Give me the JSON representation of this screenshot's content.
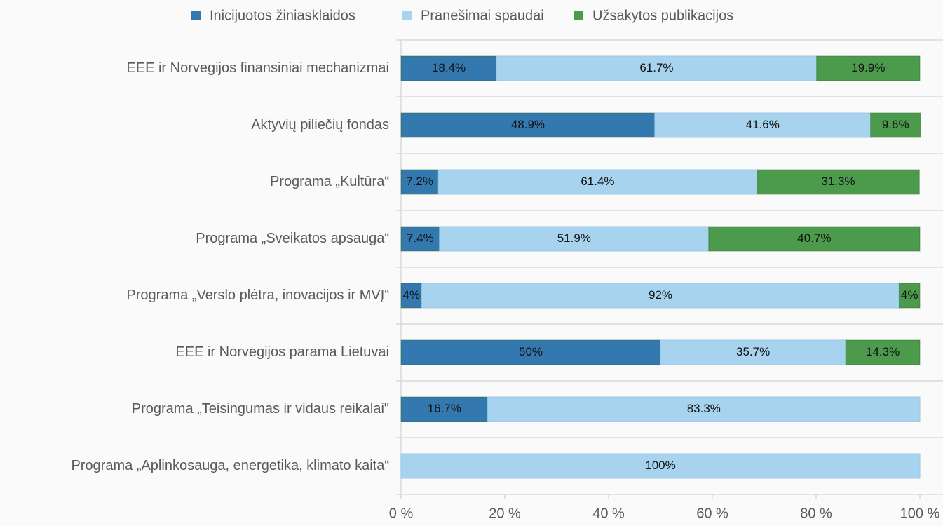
{
  "chart_data": {
    "type": "stacked-barh",
    "categories": [
      "EEE ir Norvegijos finansiniai mechanizmai",
      "Aktyvių piliečių fondas",
      "Programa „Kultūra“",
      "Programa „Sveikatos apsauga“",
      "Programa „Verslo plėtra, inovacijos ir MVĮ“",
      "EEE ir Norvegijos parama Lietuvai",
      "Programa „Teisingumas ir vidaus reikalai\"",
      "Programa „Aplinkosauga, energetika, klimato kaita“"
    ],
    "series": [
      {
        "name": "Inicijuotos žiniasklaidos",
        "color": "#3379b0",
        "values": [
          18.4,
          48.9,
          7.2,
          7.4,
          4,
          50,
          16.7,
          null
        ],
        "value_labels": [
          "18.4%",
          "48.9%",
          "7.2%",
          "7.4%",
          "4%",
          "50%",
          "16.7%",
          null
        ]
      },
      {
        "name": "Pranešimai spaudai",
        "color": "#a8d3ef",
        "values": [
          61.7,
          41.6,
          61.4,
          51.9,
          92,
          35.7,
          83.3,
          100
        ],
        "value_labels": [
          "61.7%",
          "41.6%",
          "61.4%",
          "51.9%",
          "92%",
          "35.7%",
          "83.3%",
          "100%"
        ]
      },
      {
        "name": "Užsakytos publikacijos",
        "color": "#4c9a4c",
        "values": [
          19.9,
          9.6,
          31.3,
          40.7,
          4,
          14.3,
          null,
          null
        ],
        "value_labels": [
          "19.9%",
          "9.6%",
          "31.3%",
          "40.7%",
          "4%",
          "14.3%",
          null,
          null
        ]
      }
    ],
    "xlim": [
      0,
      100
    ],
    "xticks": [
      {
        "value": 0,
        "label": "0 %"
      },
      {
        "value": 20,
        "label": "20 %"
      },
      {
        "value": 40,
        "label": "40 %"
      },
      {
        "value": 60,
        "label": "60 %"
      },
      {
        "value": 80,
        "label": "80 %"
      },
      {
        "value": 100,
        "label": "100 %"
      }
    ],
    "legend": "top"
  }
}
